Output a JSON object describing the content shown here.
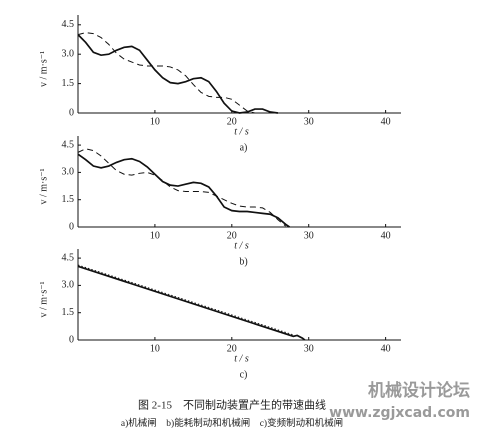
{
  "chart_data": [
    {
      "type": "line",
      "label": "a)",
      "xlabel": "t / s",
      "ylabel": "v / m·s⁻¹",
      "xlim": [
        0,
        42
      ],
      "ylim": [
        0,
        5
      ],
      "xticks": [
        10,
        20,
        30,
        40
      ],
      "yticks": [
        0,
        1.5,
        {
          "value": 3,
          "label": "3.0"
        },
        4.5
      ],
      "series": [
        {
          "color": "#111111",
          "dash": "solid",
          "x": [
            0,
            1,
            2,
            3,
            4,
            5,
            6,
            7,
            8,
            9,
            10,
            11,
            12,
            13,
            14,
            15,
            16,
            17,
            18,
            19,
            20,
            21,
            22,
            23,
            24,
            25,
            26
          ],
          "values": [
            4.0,
            3.6,
            3.1,
            2.95,
            3.0,
            3.2,
            3.35,
            3.4,
            3.2,
            2.7,
            2.2,
            1.8,
            1.55,
            1.5,
            1.6,
            1.75,
            1.8,
            1.6,
            1.1,
            0.5,
            0.1,
            0,
            0.05,
            0.2,
            0.2,
            0.05,
            0
          ]
        },
        {
          "color": "#111111",
          "dash": "dashed",
          "x": [
            0,
            1,
            2,
            3,
            4,
            5,
            6,
            7,
            8,
            9,
            10,
            11,
            12,
            13,
            14,
            15,
            16,
            17,
            18,
            19,
            20,
            21,
            22,
            23
          ],
          "values": [
            4.0,
            4.1,
            4.05,
            3.85,
            3.5,
            3.05,
            2.75,
            2.6,
            2.45,
            2.4,
            2.4,
            2.4,
            2.35,
            2.2,
            1.9,
            1.45,
            1.05,
            0.85,
            0.8,
            0.8,
            0.7,
            0.4,
            0.1,
            0
          ]
        }
      ]
    },
    {
      "type": "line",
      "label": "b)",
      "xlabel": "t / s",
      "ylabel": "v / m·s⁻¹",
      "xlim": [
        0,
        42
      ],
      "ylim": [
        0,
        5
      ],
      "xticks": [
        10,
        20,
        30,
        40
      ],
      "yticks": [
        0,
        1.5,
        {
          "value": 3,
          "label": "3.0"
        },
        4.5
      ],
      "series": [
        {
          "color": "#111111",
          "dash": "solid",
          "x": [
            0,
            1,
            2,
            3,
            4,
            5,
            6,
            7,
            8,
            9,
            10,
            11,
            12,
            13,
            14,
            15,
            16,
            17,
            18,
            19,
            20,
            21,
            22,
            23,
            24,
            25,
            26,
            27,
            27.5
          ],
          "values": [
            4.0,
            3.7,
            3.35,
            3.25,
            3.35,
            3.55,
            3.7,
            3.75,
            3.6,
            3.3,
            2.9,
            2.5,
            2.3,
            2.25,
            2.35,
            2.45,
            2.4,
            2.2,
            1.7,
            1.1,
            0.9,
            0.85,
            0.85,
            0.8,
            0.75,
            0.7,
            0.5,
            0.15,
            0
          ]
        },
        {
          "color": "#111111",
          "dash": "dashed",
          "x": [
            0,
            1,
            2,
            3,
            4,
            5,
            6,
            7,
            8,
            9,
            10,
            11,
            12,
            13,
            14,
            15,
            16,
            17,
            18,
            19,
            20,
            21,
            22,
            23,
            24,
            25,
            26,
            27
          ],
          "values": [
            4.1,
            4.3,
            4.2,
            3.9,
            3.5,
            3.1,
            2.9,
            2.85,
            2.95,
            3.0,
            2.85,
            2.55,
            2.2,
            2.0,
            1.95,
            1.95,
            1.95,
            1.9,
            1.7,
            1.5,
            1.3,
            1.15,
            1.1,
            1.1,
            1.05,
            0.8,
            0.4,
            0.05
          ]
        }
      ]
    },
    {
      "type": "line",
      "label": "c)",
      "xlabel": "t / s",
      "ylabel": "v / m·s⁻¹",
      "xlim": [
        0,
        42
      ],
      "ylim": [
        0,
        5
      ],
      "xticks": [
        10,
        20,
        30,
        40
      ],
      "yticks": [
        0,
        1.5,
        {
          "value": 3,
          "label": "3.0"
        },
        4.5
      ],
      "series": [
        {
          "color": "#111111",
          "dash": "solid",
          "x": [
            0,
            28,
            28.5,
            29.2,
            29.5
          ],
          "values": [
            4.05,
            0.2,
            0.25,
            0.1,
            0
          ]
        },
        {
          "color": "#111111",
          "dash": "dotted",
          "x": [
            0,
            28
          ],
          "values": [
            4.12,
            0.28
          ]
        }
      ]
    }
  ],
  "caption": {
    "title": "图 2-15　不同制动装置产生的带速曲线",
    "legend": "a)机械闸　b)能耗制动和机械闸　c)变频制动和机械闸"
  },
  "watermark": {
    "name": "机械设计论坛",
    "url": "www.zgjxcad.com"
  }
}
